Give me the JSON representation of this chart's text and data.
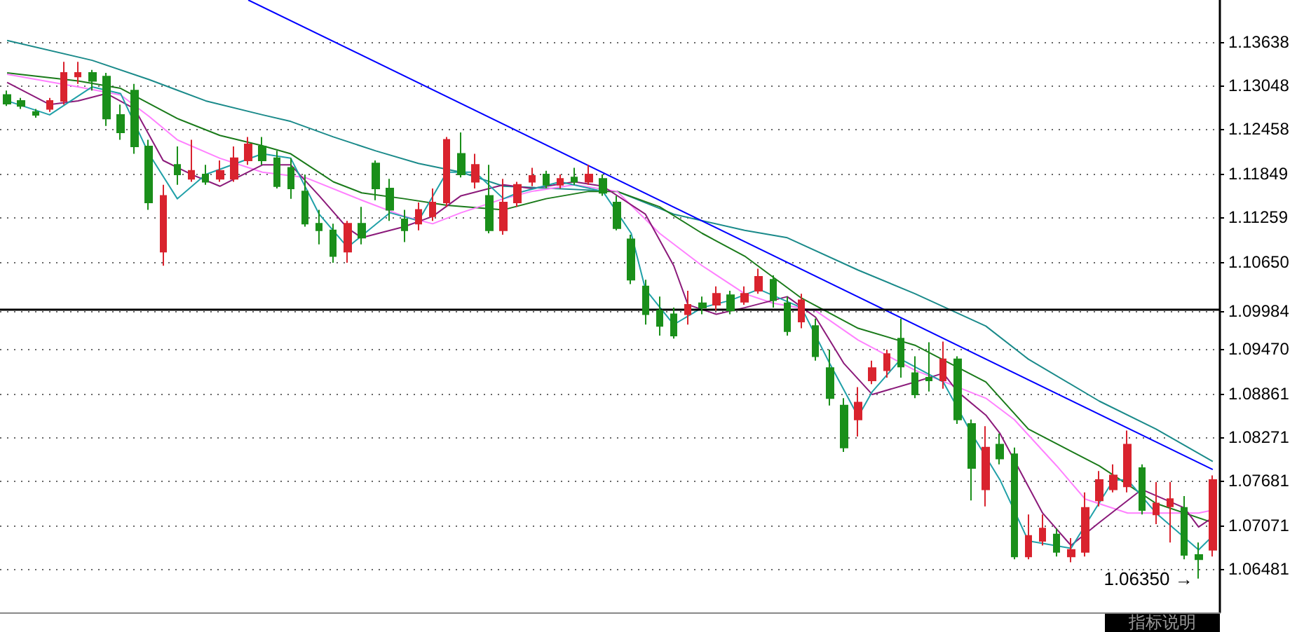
{
  "chart_data": {
    "type": "candlestick",
    "categories": [
      null,
      null,
      null,
      null,
      null,
      null,
      null,
      null,
      null,
      null,
      null,
      null,
      null,
      null,
      null,
      null,
      null,
      null,
      null,
      null,
      null,
      null,
      null,
      null,
      null,
      null,
      null,
      null,
      null,
      null,
      null,
      null,
      null,
      null,
      null,
      null,
      null,
      null,
      null,
      null,
      null,
      null,
      null,
      null,
      null,
      null,
      null,
      null,
      null,
      null,
      null,
      null,
      null,
      null,
      null,
      null,
      null,
      null,
      null,
      null,
      null,
      null,
      null,
      null,
      null,
      null,
      null,
      null,
      null,
      null,
      null,
      null,
      null,
      null,
      null,
      null,
      null,
      null,
      null,
      null,
      null,
      null,
      null,
      null,
      null,
      null
    ],
    "ylim": [
      1.0589,
      1.1421
    ],
    "yticks": [
      {
        "value": 1.06481,
        "label": "1.06481"
      },
      {
        "value": 1.07071,
        "label": "1.07071"
      },
      {
        "value": 1.07681,
        "label": "1.07681"
      },
      {
        "value": 1.08271,
        "label": "1.08271"
      },
      {
        "value": 1.08861,
        "label": "1.08861"
      },
      {
        "value": 1.0947,
        "label": "1.09470"
      },
      {
        "value": 1.09984,
        "label": "1.09984"
      },
      {
        "value": 1.1065,
        "label": "1.10650"
      },
      {
        "value": 1.11259,
        "label": "1.11259"
      },
      {
        "value": 1.11849,
        "label": "1.11849"
      },
      {
        "value": 1.12458,
        "label": "1.12458"
      },
      {
        "value": 1.13048,
        "label": "1.13048"
      },
      {
        "value": 1.13638,
        "label": "1.13638"
      }
    ],
    "tick_labels": "y",
    "grid": "y",
    "marker": "none",
    "ref_lines": [
      {
        "axis": "y",
        "value": 1.09984,
        "color": "#000000"
      }
    ],
    "annotations": [
      "1.06350 →",
      "指标说明"
    ],
    "series": [
      {
        "ohlc": [
          [
            1.1292,
            1.1298,
            1.1277,
            1.128
          ],
          [
            1.1284,
            1.1288,
            1.1273,
            1.1277
          ],
          [
            1.1269,
            1.1273,
            1.1261,
            1.1265
          ],
          [
            1.1273,
            1.1288,
            1.1269,
            1.1284
          ],
          [
            1.1284,
            1.1337,
            1.1279,
            1.1322
          ],
          [
            1.1317,
            1.1337,
            1.1307,
            1.1322
          ],
          [
            1.1322,
            1.1326,
            1.1298,
            1.1311
          ],
          [
            1.1317,
            1.1322,
            1.125,
            1.126
          ],
          [
            1.1265,
            1.1279,
            1.1231,
            1.1241
          ],
          [
            1.1298,
            1.1307,
            1.1212,
            1.1222
          ],
          [
            1.1222,
            1.1231,
            1.1136,
            1.1146
          ],
          [
            1.1079,
            1.117,
            1.106,
            1.1155
          ],
          [
            1.1197,
            1.1222,
            1.117,
            1.1184
          ],
          [
            1.1178,
            1.1231,
            1.1174,
            1.1189
          ],
          [
            1.1184,
            1.1197,
            1.117,
            1.1174
          ],
          [
            1.1178,
            1.1203,
            1.1174,
            1.1189
          ],
          [
            1.1178,
            1.1222,
            1.1174,
            1.1206
          ],
          [
            1.1203,
            1.1235,
            1.1197,
            1.1225
          ],
          [
            1.1222,
            1.1235,
            1.1197,
            1.1203
          ],
          [
            1.1206,
            1.1216,
            1.1165,
            1.1168
          ],
          [
            1.1193,
            1.1206,
            1.1151,
            1.1165
          ],
          [
            1.1161,
            1.1184,
            1.1113,
            1.1117
          ],
          [
            1.1117,
            1.1136,
            1.1089,
            1.1108
          ],
          [
            1.1108,
            1.1117,
            1.1064,
            1.1073
          ],
          [
            1.1079,
            1.1121,
            1.1064,
            1.1117
          ],
          [
            1.1117,
            1.114,
            1.1089,
            1.1098
          ],
          [
            1.1199,
            1.1203,
            1.1149,
            1.1165
          ],
          [
            1.1165,
            1.1178,
            1.1121,
            1.1136
          ],
          [
            1.1123,
            1.1136,
            1.1092,
            1.1108
          ],
          [
            1.1117,
            1.1146,
            1.1108,
            1.1136
          ],
          [
            1.1127,
            1.1165,
            1.1121,
            1.1146
          ],
          [
            1.1146,
            1.1235,
            1.114,
            1.1231
          ],
          [
            1.1212,
            1.1241,
            1.118,
            1.1184
          ],
          [
            1.1174,
            1.1212,
            1.1165,
            1.1197
          ],
          [
            1.1155,
            1.1197,
            1.1104,
            1.1108
          ],
          [
            1.1108,
            1.1178,
            1.1102,
            1.1146
          ],
          [
            1.1146,
            1.1174,
            1.114,
            1.117
          ],
          [
            1.1174,
            1.1193,
            1.1168,
            1.1182
          ],
          [
            1.1184,
            1.1189,
            1.1165,
            1.117
          ],
          [
            1.117,
            1.1184,
            1.1165,
            1.1178
          ],
          [
            1.118,
            1.1193,
            1.117,
            1.1174
          ],
          [
            1.1174,
            1.1197,
            1.117,
            1.1184
          ],
          [
            1.1178,
            1.1184,
            1.1155,
            1.1159
          ],
          [
            1.1146,
            1.1155,
            1.1108,
            1.1111
          ],
          [
            1.1096,
            1.1102,
            1.1035,
            1.1041
          ],
          [
            1.1032,
            1.1041,
            1.098,
            1.0994
          ],
          [
            1.0999,
            1.1018,
            1.0965,
            1.0978
          ],
          [
            1.0994,
            1.1003,
            1.0961,
            1.0965
          ],
          [
            1.0994,
            1.1026,
            1.098,
            1.1007
          ],
          [
            1.1009,
            1.1018,
            1.0994,
            1.1003
          ],
          [
            1.1007,
            1.1032,
            1.0999,
            1.1022
          ],
          [
            1.102,
            1.1026,
            1.0994,
            1.0999
          ],
          [
            1.1011,
            1.1032,
            1.1007,
            1.1022
          ],
          [
            1.1026,
            1.1056,
            1.1022,
            1.1045
          ],
          [
            1.1041,
            1.1047,
            1.1003,
            1.1013
          ],
          [
            1.1009,
            1.1018,
            1.0965,
            1.0971
          ],
          [
            1.0984,
            1.1022,
            1.0975,
            1.1013
          ],
          [
            1.0978,
            1.0988,
            1.0931,
            1.0937
          ],
          [
            1.0921,
            1.0946,
            1.087,
            1.088
          ],
          [
            1.087,
            1.088,
            1.0807,
            1.0813
          ],
          [
            1.0851,
            1.0895,
            1.0828,
            1.0874
          ],
          [
            1.0904,
            1.0931,
            1.0899,
            1.0921
          ],
          [
            1.0918,
            1.0946,
            1.0908,
            1.094
          ],
          [
            1.0961,
            1.0988,
            1.0908,
            1.0923
          ],
          [
            1.0914,
            1.0937,
            1.088,
            1.0885
          ],
          [
            1.0908,
            1.0956,
            1.0889,
            1.0904
          ],
          [
            1.0904,
            1.0957,
            1.0893,
            1.0933
          ],
          [
            1.0933,
            1.0937,
            1.0845,
            1.0851
          ],
          [
            1.0845,
            1.0851,
            1.0741,
            1.0785
          ],
          [
            1.0756,
            1.0842,
            1.0733,
            1.0813
          ],
          [
            1.0817,
            1.0832,
            1.079,
            1.0798
          ],
          [
            1.0804,
            1.0813,
            1.0661,
            1.0665
          ],
          [
            1.0665,
            1.0722,
            1.0661,
            1.0693
          ],
          [
            1.0686,
            1.0722,
            1.068,
            1.0703
          ],
          [
            1.0695,
            1.0703,
            1.0665,
            1.0671
          ],
          [
            1.0665,
            1.069,
            1.0657,
            1.0674
          ],
          [
            1.0671,
            1.0752,
            1.0665,
            1.0731
          ],
          [
            1.0741,
            1.0781,
            1.0733,
            1.0769
          ],
          [
            1.0756,
            1.079,
            1.0752,
            1.0775
          ],
          [
            1.076,
            1.0836,
            1.0752,
            1.0817
          ],
          [
            1.0785,
            1.079,
            1.0722,
            1.0728
          ],
          [
            1.0722,
            1.0766,
            1.0709,
            1.0737
          ],
          [
            1.0733,
            1.0766,
            1.0684,
            1.0743
          ],
          [
            1.0731,
            1.0747,
            1.0661,
            1.0667
          ],
          [
            1.0667,
            1.0684,
            1.0635,
            1.0661
          ],
          [
            1.0674,
            1.0775,
            1.0665,
            1.0769
          ]
        ],
        "colors": [
          "#1a8f1a",
          "#1a8f1a",
          "#1a8f1a",
          "#d9232e",
          "#d9232e",
          "#d9232e",
          "#1a8f1a",
          "#1a8f1a",
          "#1a8f1a",
          "#1a8f1a",
          "#1a8f1a",
          "#d9232e",
          "#1a8f1a",
          "#d9232e",
          "#1a8f1a",
          "#d9232e",
          "#d9232e",
          "#d9232e",
          "#1a8f1a",
          "#1a8f1a",
          "#1a8f1a",
          "#1a8f1a",
          "#1a8f1a",
          "#1a8f1a",
          "#d9232e",
          "#1a8f1a",
          "#1a8f1a",
          "#1a8f1a",
          "#1a8f1a",
          "#d9232e",
          "#d9232e",
          "#d9232e",
          "#1a8f1a",
          "#d9232e",
          "#1a8f1a",
          "#d9232e",
          "#d9232e",
          "#d9232e",
          "#1a8f1a",
          "#d9232e",
          "#1a8f1a",
          "#d9232e",
          "#1a8f1a",
          "#1a8f1a",
          "#1a8f1a",
          "#1a8f1a",
          "#1a8f1a",
          "#1a8f1a",
          "#d9232e",
          "#1a8f1a",
          "#d9232e",
          "#1a8f1a",
          "#d9232e",
          "#d9232e",
          "#1a8f1a",
          "#1a8f1a",
          "#d9232e",
          "#1a8f1a",
          "#1a8f1a",
          "#1a8f1a",
          "#d9232e",
          "#d9232e",
          "#d9232e",
          "#1a8f1a",
          "#1a8f1a",
          "#1a8f1a",
          "#d9232e",
          "#1a8f1a",
          "#1a8f1a",
          "#d9232e",
          "#1a8f1a",
          "#1a8f1a",
          "#d9232e",
          "#d9232e",
          "#1a8f1a",
          "#d9232e",
          "#d9232e",
          "#d9232e",
          "#d9232e",
          "#d9232e",
          "#1a8f1a",
          "#d9232e",
          "#d9232e",
          "#1a8f1a",
          "#1a8f1a",
          "#d9232e"
        ]
      },
      {
        "type": "line",
        "color": "#1a8a8a",
        "values": [
          1.1366,
          null,
          null,
          null,
          null,
          null,
          1.1339,
          null,
          null,
          null,
          1.1313,
          null,
          null,
          null,
          1.1284,
          null,
          null,
          null,
          1.1265,
          null,
          1.1256,
          null,
          null,
          1.1235,
          null,
          null,
          1.1216,
          null,
          null,
          1.1199,
          null,
          null,
          1.1187,
          null,
          null,
          1.1168,
          null,
          null,
          null,
          null,
          null,
          null,
          null,
          1.1161,
          null,
          null,
          null,
          1.113,
          null,
          null,
          null,
          null,
          1.1108,
          null,
          null,
          1.1098,
          null,
          null,
          null,
          null,
          1.1054,
          null,
          null,
          null,
          1.1022,
          null,
          null,
          null,
          null,
          1.0978,
          null,
          null,
          1.0933,
          null,
          null,
          null,
          null,
          1.0876,
          null,
          null,
          null,
          1.0838,
          null,
          null,
          null,
          1.0794
        ]
      },
      {
        "type": "line",
        "color": "#1a7a1a",
        "values": [
          1.1322,
          null,
          null,
          null,
          null,
          1.1311,
          null,
          null,
          1.1301,
          null,
          null,
          null,
          1.126,
          null,
          null,
          1.1237,
          null,
          null,
          1.1223,
          null,
          1.1212,
          null,
          null,
          1.1174,
          null,
          1.1159,
          null,
          null,
          1.1151,
          null,
          null,
          1.1142,
          null,
          null,
          null,
          1.1136,
          null,
          null,
          1.1151,
          null,
          null,
          1.1161,
          null,
          1.1161,
          null,
          null,
          1.114,
          null,
          null,
          1.1104,
          null,
          null,
          1.1073,
          null,
          null,
          null,
          1.1016,
          null,
          null,
          null,
          1.0975,
          null,
          null,
          null,
          1.0952,
          null,
          null,
          null,
          null,
          1.0902,
          null,
          null,
          1.0838,
          null,
          null,
          null,
          null,
          1.0788,
          null,
          null,
          null,
          1.0737,
          null,
          null,
          null,
          1.0711
        ]
      },
      {
        "type": "line",
        "color": "#ff80ff",
        "values": [
          1.132,
          null,
          null,
          null,
          null,
          1.1303,
          null,
          null,
          1.1292,
          null,
          1.1263,
          null,
          1.1231,
          null,
          null,
          1.1206,
          null,
          null,
          1.1187,
          null,
          null,
          1.118,
          null,
          null,
          null,
          1.1149,
          null,
          null,
          1.1127,
          null,
          1.1117,
          null,
          1.1132,
          null,
          null,
          1.1151,
          null,
          1.1161,
          null,
          null,
          1.117,
          null,
          null,
          1.1161,
          null,
          null,
          1.1104,
          null,
          null,
          1.106,
          null,
          null,
          1.1022,
          null,
          1.1009,
          null,
          null,
          1.0999,
          null,
          null,
          1.0959,
          null,
          null,
          null,
          1.0918,
          null,
          null,
          null,
          null,
          1.088,
          null,
          1.0851,
          null,
          null,
          1.0788,
          null,
          1.0743,
          null,
          null,
          1.0724,
          null,
          null,
          1.0724,
          null,
          1.0724,
          1.0728
        ]
      },
      {
        "type": "line",
        "color": "#8b1a7a",
        "values": [
          1.1309,
          null,
          null,
          1.1279,
          null,
          1.1284,
          null,
          1.1294,
          null,
          1.1273,
          null,
          1.1203,
          null,
          1.1184,
          null,
          1.1168,
          null,
          null,
          1.1197,
          null,
          1.1197,
          null,
          1.1155,
          null,
          1.1111,
          1.1098,
          null,
          null,
          1.1113,
          null,
          1.1127,
          null,
          1.1155,
          null,
          null,
          1.117,
          null,
          1.1165,
          null,
          null,
          1.1174,
          null,
          1.1168,
          null,
          null,
          1.113,
          null,
          1.106,
          1.1007,
          null,
          1.0994,
          null,
          1.1003,
          null,
          null,
          1.1018,
          null,
          1.099,
          null,
          1.0927,
          null,
          1.0885,
          null,
          null,
          1.0902,
          null,
          1.0914,
          1.0889,
          null,
          1.0857,
          1.0832,
          null,
          null,
          1.0724,
          null,
          1.068,
          null,
          1.0711,
          null,
          null,
          1.0756,
          null,
          null,
          1.0731,
          1.0705,
          1.0718
        ]
      },
      {
        "type": "line",
        "color": "#20a0a8",
        "values": [
          1.1284,
          null,
          null,
          1.1265,
          null,
          null,
          1.1303,
          null,
          1.1294,
          null,
          1.1212,
          null,
          1.1151,
          null,
          1.1184,
          null,
          null,
          null,
          1.1212,
          null,
          1.1206,
          null,
          1.113,
          null,
          1.1085,
          null,
          null,
          1.1132,
          null,
          1.1121,
          null,
          1.1187,
          null,
          1.1187,
          null,
          1.1151,
          1.1159,
          null,
          null,
          1.1174,
          null,
          null,
          1.1161,
          null,
          1.1104,
          1.1028,
          null,
          1.098,
          null,
          1.1003,
          null,
          1.1013,
          null,
          1.1028,
          null,
          null,
          1.1003,
          null,
          1.0927,
          null,
          1.0855,
          1.0889,
          null,
          1.0933,
          null,
          null,
          1.0902,
          null,
          1.0832,
          null,
          1.0769,
          null,
          1.0686,
          null,
          null,
          1.0676,
          null,
          null,
          1.0769,
          1.0769,
          null,
          1.0724,
          null,
          null,
          1.0674,
          1.0693
        ]
      },
      {
        "type": "line",
        "color": "#0000ff",
        "values": [
          null,
          null,
          null,
          null,
          null,
          null,
          null,
          null,
          null,
          null,
          null,
          null,
          null,
          null,
          null,
          null,
          null,
          1.1421,
          null,
          null,
          null,
          null,
          null,
          null,
          null,
          null,
          null,
          null,
          null,
          null,
          null,
          null,
          null,
          null,
          null,
          null,
          null,
          null,
          null,
          null,
          null,
          null,
          null,
          null,
          null,
          null,
          null,
          null,
          null,
          null,
          null,
          null,
          null,
          null,
          null,
          null,
          null,
          null,
          null,
          null,
          null,
          null,
          null,
          null,
          null,
          null,
          null,
          null,
          null,
          null,
          null,
          null,
          null,
          null,
          null,
          null,
          null,
          null,
          null,
          null,
          null,
          null,
          null,
          null,
          null,
          1.0783
        ]
      }
    ]
  }
}
